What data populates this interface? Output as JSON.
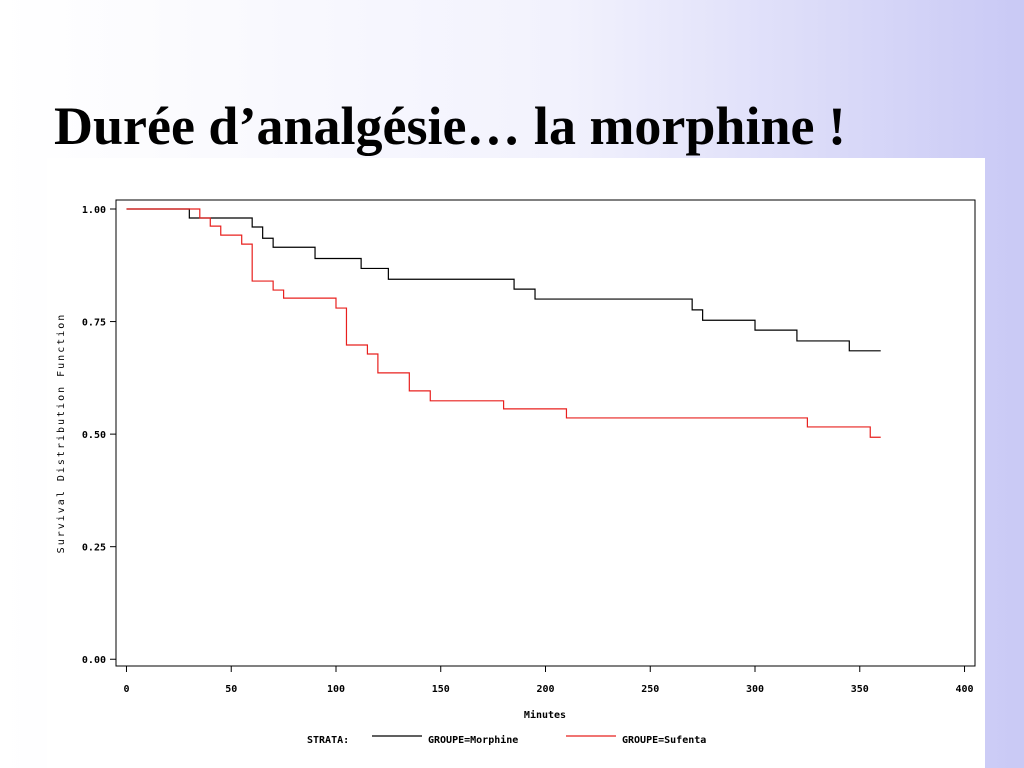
{
  "title": "Durée d’analgésie… la morphine !",
  "chart_data": {
    "type": "line",
    "step": "post",
    "xlabel": "Minutes",
    "ylabel": "Survival Distribution Function",
    "legend_title": "STRATA:",
    "legend": "bottom",
    "xlim": [
      -5,
      405
    ],
    "ylim": [
      -0.015,
      1.02
    ],
    "xticks": [
      0,
      50,
      100,
      150,
      200,
      250,
      300,
      350,
      400
    ],
    "yticks": [
      {
        "value": 0,
        "label": "0.00"
      },
      {
        "value": 0.25,
        "label": "0.25"
      },
      {
        "value": 0.5,
        "label": "0.50"
      },
      {
        "value": 0.75,
        "label": "0.75"
      },
      {
        "value": 1,
        "label": "1.00"
      }
    ],
    "series": [
      {
        "name": "GROUPE=Morphine",
        "color": "#000000",
        "x": [
          0,
          30,
          60,
          65,
          70,
          90,
          112,
          125,
          185,
          195,
          270,
          275,
          300,
          320,
          345,
          360
        ],
        "values": [
          1,
          0.98,
          0.96,
          0.935,
          0.915,
          0.89,
          0.868,
          0.844,
          0.822,
          0.8,
          0.776,
          0.753,
          0.731,
          0.707,
          0.685,
          0.685
        ]
      },
      {
        "name": "GROUPE=Sufenta",
        "color": "#e8201e",
        "x": [
          0,
          35,
          40,
          45,
          55,
          60,
          70,
          75,
          100,
          105,
          115,
          120,
          135,
          145,
          180,
          210,
          325,
          355,
          360
        ],
        "values": [
          1,
          0.98,
          0.962,
          0.942,
          0.922,
          0.84,
          0.82,
          0.802,
          0.78,
          0.698,
          0.678,
          0.636,
          0.596,
          0.574,
          0.556,
          0.536,
          0.516,
          0.493,
          0.493
        ]
      }
    ]
  }
}
